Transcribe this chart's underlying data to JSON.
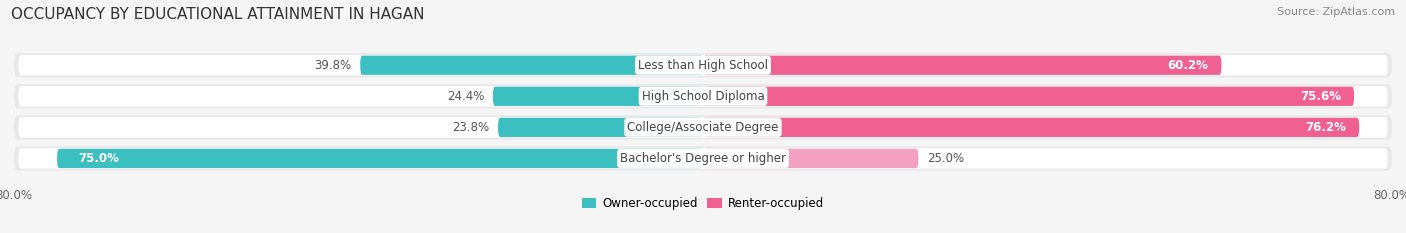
{
  "title": "OCCUPANCY BY EDUCATIONAL ATTAINMENT IN HAGAN",
  "source": "Source: ZipAtlas.com",
  "categories": [
    "Less than High School",
    "High School Diploma",
    "College/Associate Degree",
    "Bachelor's Degree or higher"
  ],
  "owner_values": [
    39.8,
    24.4,
    23.8,
    75.0
  ],
  "renter_values": [
    60.2,
    75.6,
    76.2,
    25.0
  ],
  "owner_color": "#3bbfc0",
  "renter_color": "#f06090",
  "renter_color_light": "#f4a0c0",
  "background_color": "#f5f5f5",
  "bar_background": "#e8e8e8",
  "bar_inner": "#ffffff",
  "axis_min": -80,
  "axis_max": 80,
  "legend_owner": "Owner-occupied",
  "legend_renter": "Renter-occupied",
  "title_fontsize": 11,
  "source_fontsize": 8,
  "label_fontsize": 8.5,
  "cat_fontsize": 8.5,
  "bar_height": 0.62
}
